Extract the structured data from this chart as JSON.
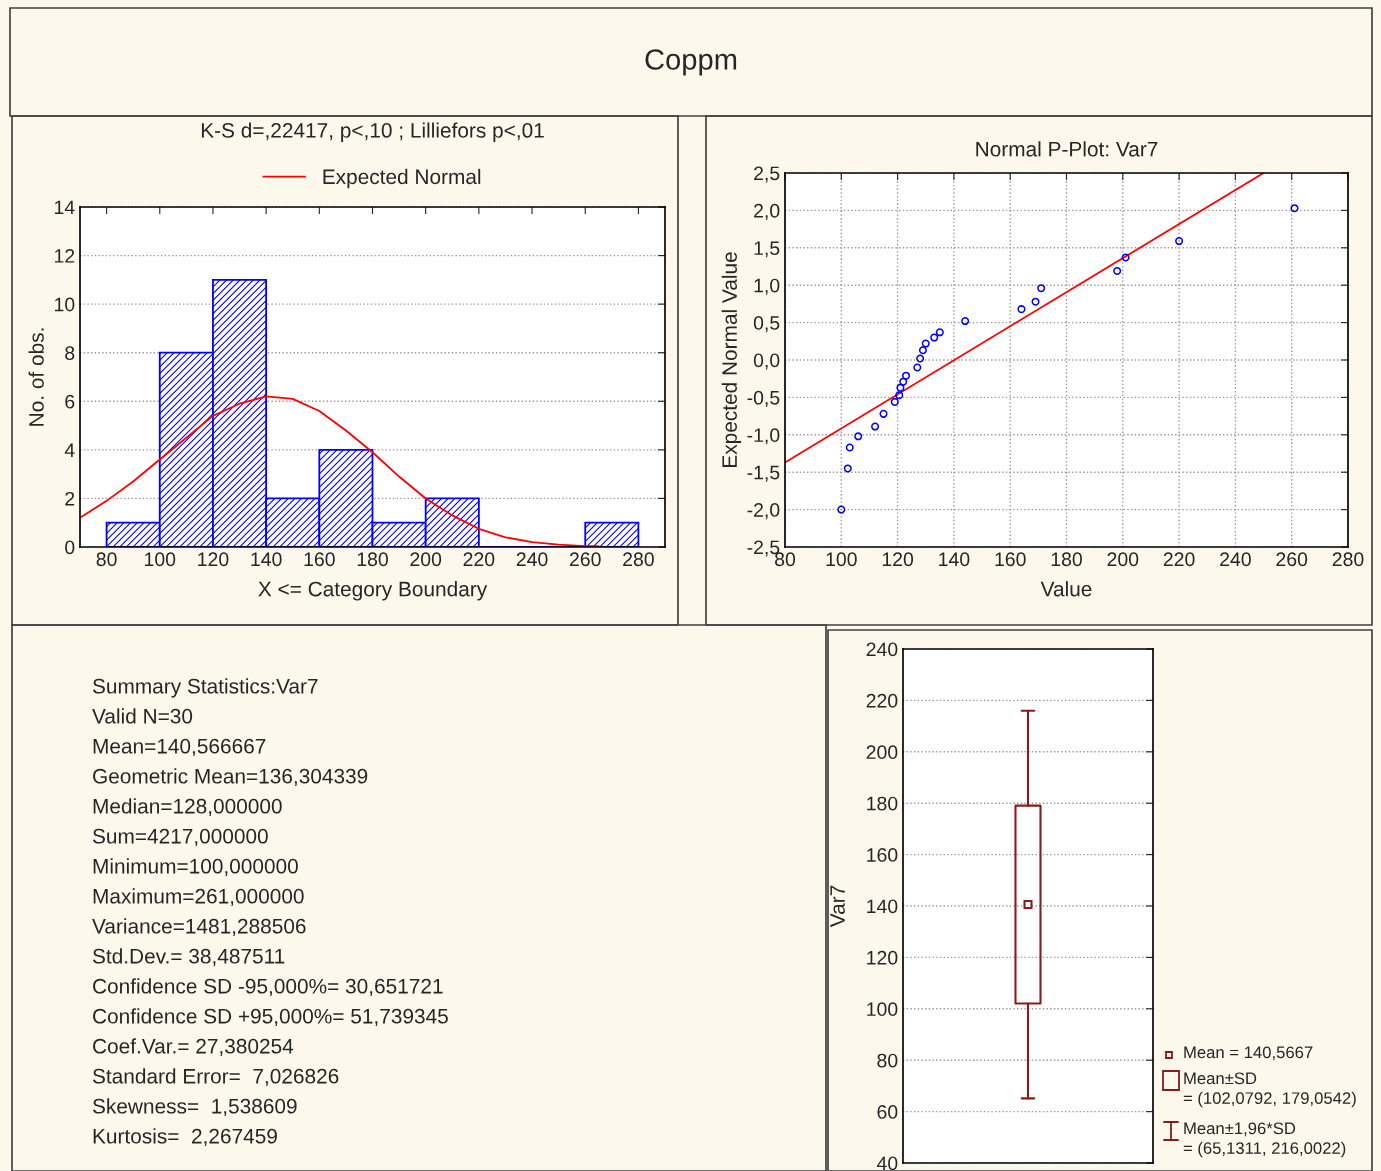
{
  "chart_data": [
    {
      "type": "other",
      "title": "Coppm"
    },
    {
      "type": "histogram",
      "title": "K-S d=,22417, p<,10 ; Lilliefors p<,01",
      "xlabel": "X <= Category Boundary",
      "ylabel": "No. of obs.",
      "bins": [
        80,
        100,
        120,
        140,
        160,
        180,
        200,
        220,
        240,
        260,
        280
      ],
      "values": [
        1,
        8,
        11,
        2,
        4,
        1,
        2,
        0,
        0,
        1
      ],
      "color": "#0000ff",
      "xlim": [
        70,
        290
      ],
      "xticks": [
        80,
        100,
        120,
        140,
        160,
        180,
        200,
        220,
        240,
        260,
        280
      ],
      "ylim": [
        0,
        14
      ],
      "yticks": [
        0,
        2,
        4,
        6,
        8,
        10,
        12,
        14
      ],
      "grid": "y",
      "legend": "top",
      "series": [
        {
          "name": "Expected Normal",
          "type": "line",
          "color": "#ff0000",
          "x": [
            70,
            80,
            90,
            100,
            110,
            120,
            130,
            140,
            150,
            160,
            170,
            180,
            190,
            200,
            210,
            220,
            230,
            240,
            250,
            260,
            265
          ],
          "values": [
            1.2,
            1.9,
            2.7,
            3.6,
            4.5,
            5.4,
            5.9,
            6.2,
            6.1,
            5.6,
            4.8,
            3.9,
            2.9,
            2.0,
            1.3,
            0.75,
            0.4,
            0.2,
            0.1,
            0.04,
            0.03
          ]
        }
      ]
    },
    {
      "type": "scatter",
      "title": "Normal P-Plot: Var7",
      "xlabel": "Value",
      "ylabel": "Expected Normal Value",
      "xlim": [
        80,
        280
      ],
      "xticks": [
        80,
        100,
        120,
        140,
        160,
        180,
        200,
        220,
        240,
        260,
        280
      ],
      "ylim": [
        -2.5,
        2.5
      ],
      "yticks": [
        {
          "value": -2.5,
          "label": "-2,5"
        },
        {
          "value": -2,
          "label": "-2,0"
        },
        {
          "value": -1.5,
          "label": "-1,5"
        },
        {
          "value": -1,
          "label": "-1,0"
        },
        {
          "value": -0.5,
          "label": "-0,5"
        },
        {
          "value": 0,
          "label": "0,0"
        },
        {
          "value": 0.5,
          "label": "0,5"
        },
        {
          "value": 1,
          "label": "1,0"
        },
        {
          "value": 1.5,
          "label": "1,5"
        },
        {
          "value": 2,
          "label": "2,0"
        },
        {
          "value": 2.5,
          "label": "2,5"
        }
      ],
      "grid": true,
      "marker": "circle",
      "series": [
        {
          "type": "scatter",
          "color": "#0000ff",
          "x": [
            100,
            102.3,
            103,
            106,
            112,
            115,
            119,
            120.6,
            121,
            122,
            123,
            127,
            128,
            129,
            130,
            133,
            135,
            144,
            164,
            169,
            171,
            198,
            201,
            220,
            261
          ],
          "values": [
            -2.0,
            -1.45,
            -1.17,
            -1.02,
            -0.89,
            -0.72,
            -0.56,
            -0.47,
            -0.37,
            -0.29,
            -0.21,
            -0.1,
            0.02,
            0.13,
            0.22,
            0.3,
            0.37,
            0.52,
            0.68,
            0.78,
            0.96,
            1.19,
            1.37,
            1.59,
            2.03
          ]
        },
        {
          "type": "line",
          "color": "#ff0000",
          "marker": "none",
          "x": [
            80,
            250
          ],
          "values": [
            -1.37,
            2.5
          ]
        }
      ]
    },
    {
      "type": "other",
      "title": "Summary Statistics:Var7",
      "annotations": [
        "Valid N=30",
        "Mean=140,566667",
        "Geometric Mean=136,304339",
        "Median=128,000000",
        "Sum=4217,000000",
        "Minimum=100,000000",
        "Maximum=261,000000",
        "Variance=1481,288506",
        "Std.Dev.= 38,487511",
        "Confidence SD -95,000%= 30,651721",
        "Confidence SD +95,000%= 51,739345",
        "Coef.Var.= 27,380254",
        "Standard Error=  7,026826",
        "Skewness=  1,538609",
        "Kurtosis=  2,267459"
      ]
    },
    {
      "type": "box",
      "ylabel": "Var7",
      "categories": [
        null
      ],
      "color": "#8b1a1a",
      "boxes": [
        {
          "low": 65.1311,
          "q1": 102.0792,
          "median": null,
          "q3": 179.0542,
          "high": 216.0022,
          "mean": 140.5667
        }
      ],
      "ylim": [
        40,
        240
      ],
      "yticks": [
        40,
        60,
        80,
        100,
        120,
        140,
        160,
        180,
        200,
        220,
        240
      ],
      "grid": "y",
      "annotations": [
        "Mean = 140,5667",
        "Mean±SD\n= (102,0792, 179,0542)",
        "Mean±1,96*SD\n= (65,1311, 216,0022)"
      ]
    }
  ]
}
